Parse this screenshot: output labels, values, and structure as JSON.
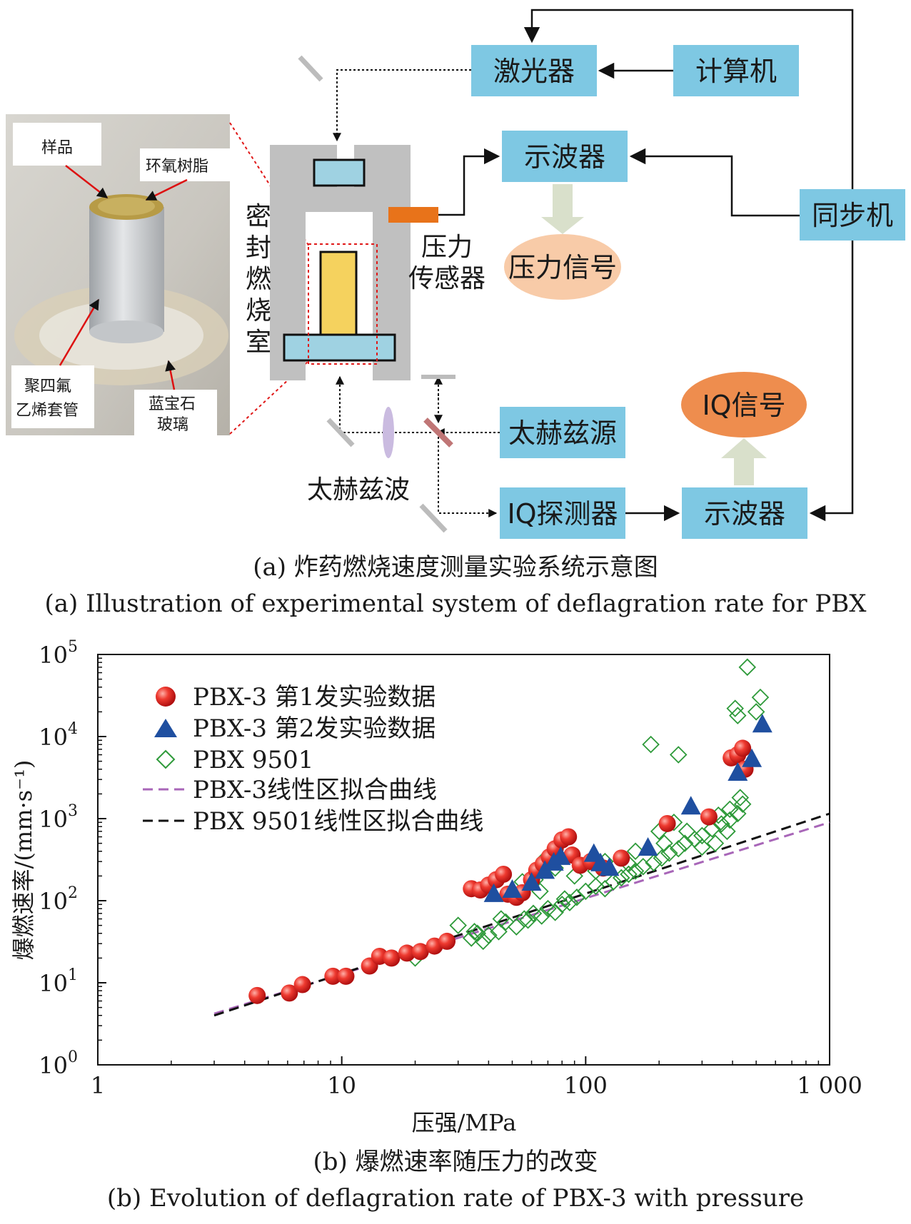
{
  "diagram": {
    "boxes": {
      "laser": "激光器",
      "computer": "计算机",
      "oscilloscope_top": "示波器",
      "sync": "同步机",
      "thz_source": "太赫兹源",
      "iq_detector": "IQ探测器",
      "oscilloscope_bottom": "示波器"
    },
    "ellipses": {
      "pressure_signal": "压力信号",
      "iq_signal": "IQ信号"
    },
    "labels": {
      "chamber": [
        "密",
        "封",
        "燃",
        "烧",
        "室"
      ],
      "pressure_sensor": [
        "压力",
        "传感器"
      ],
      "thz_wave": "太赫兹波"
    },
    "photo_labels": {
      "sample": "样品",
      "epoxy": "环氧树脂",
      "ptfe": [
        "聚四氟",
        "乙烯套管"
      ],
      "sapphire": [
        "蓝宝石",
        "玻璃"
      ]
    },
    "caption_zh": "(a) 炸药燃烧速度测量实验系统示意图",
    "caption_en": "(a) Illustration of experimental system of deflagration rate for PBX",
    "colors": {
      "box": "#7ec8e3",
      "sensor": "#e8731a",
      "sample": "#f5d25e",
      "pressure_ellipse": "#f8cba8",
      "iq_ellipse": "#ee8d4e"
    }
  },
  "chart_data": {
    "type": "scatter",
    "xlabel": "压强/MPa",
    "ylabel": "爆燃速率/(mm·s⁻¹)",
    "x_scale": "log",
    "y_scale": "log",
    "xlim": [
      1,
      1000
    ],
    "ylim": [
      1,
      100000
    ],
    "x_ticks": [
      1,
      10,
      100,
      1000
    ],
    "x_tick_labels": [
      "1",
      "10",
      "100",
      "1 000"
    ],
    "y_ticks": [
      1,
      10,
      100,
      1000,
      10000,
      100000
    ],
    "y_tick_labels": [
      [
        "10",
        "0"
      ],
      [
        "10",
        "1"
      ],
      [
        "10",
        "2"
      ],
      [
        "10",
        "3"
      ],
      [
        "10",
        "4"
      ],
      [
        "10",
        "5"
      ]
    ],
    "legend_position": "top-left",
    "series": [
      {
        "name": "PBX-3 第1发实验数据",
        "marker": "circle",
        "color": "#e02020",
        "points": [
          [
            4.5,
            7
          ],
          [
            6.1,
            7.5
          ],
          [
            6.9,
            9.5
          ],
          [
            9.2,
            12
          ],
          [
            10.4,
            12
          ],
          [
            13,
            16
          ],
          [
            14.3,
            21
          ],
          [
            16,
            20
          ],
          [
            18.5,
            23
          ],
          [
            21,
            24
          ],
          [
            24,
            28
          ],
          [
            27,
            32
          ],
          [
            34,
            140
          ],
          [
            37,
            135
          ],
          [
            40,
            155
          ],
          [
            43,
            180
          ],
          [
            46,
            210
          ],
          [
            48,
            120
          ],
          [
            52,
            110
          ],
          [
            55,
            125
          ],
          [
            60,
            180
          ],
          [
            63,
            235
          ],
          [
            67,
            280
          ],
          [
            71,
            340
          ],
          [
            75,
            430
          ],
          [
            80,
            550
          ],
          [
            85,
            600
          ],
          [
            88,
            360
          ],
          [
            95,
            270
          ],
          [
            105,
            300
          ],
          [
            118,
            250
          ],
          [
            140,
            330
          ],
          [
            216,
            870
          ],
          [
            320,
            1050
          ],
          [
            395,
            5500
          ],
          [
            420,
            6000
          ],
          [
            440,
            7200
          ],
          [
            450,
            4000
          ]
        ]
      },
      {
        "name": "PBX-3 第2发实验数据",
        "marker": "triangle",
        "color": "#1f4fa0",
        "points": [
          [
            42,
            120
          ],
          [
            50,
            135
          ],
          [
            60,
            165
          ],
          [
            68,
            230
          ],
          [
            74,
            290
          ],
          [
            79,
            340
          ],
          [
            108,
            370
          ],
          [
            115,
            285
          ],
          [
            125,
            250
          ],
          [
            180,
            440
          ],
          [
            270,
            1400
          ],
          [
            420,
            3600
          ],
          [
            480,
            5300
          ],
          [
            530,
            14000
          ]
        ]
      },
      {
        "name": "PBX 9501",
        "marker": "diamond",
        "color": "#2e9a3a",
        "points": [
          [
            20,
            20
          ],
          [
            30,
            50
          ],
          [
            34,
            35
          ],
          [
            36,
            40
          ],
          [
            40,
            38
          ],
          [
            44,
            42
          ],
          [
            47,
            55
          ],
          [
            52,
            48
          ],
          [
            56,
            60
          ],
          [
            61,
            70
          ],
          [
            66,
            65
          ],
          [
            70,
            80
          ],
          [
            75,
            72
          ],
          [
            80,
            90
          ],
          [
            86,
            95
          ],
          [
            92,
            110
          ],
          [
            100,
            130
          ],
          [
            110,
            150
          ],
          [
            120,
            140
          ],
          [
            130,
            170
          ],
          [
            140,
            190
          ],
          [
            150,
            210
          ],
          [
            160,
            230
          ],
          [
            172,
            260
          ],
          [
            190,
            290
          ],
          [
            205,
            330
          ],
          [
            220,
            380
          ],
          [
            240,
            430
          ],
          [
            255,
            500
          ],
          [
            280,
            560
          ],
          [
            300,
            620
          ],
          [
            330,
            750
          ],
          [
            360,
            860
          ],
          [
            390,
            960
          ],
          [
            420,
            1150
          ],
          [
            440,
            1500
          ],
          [
            430,
            1800
          ],
          [
            380,
            700
          ],
          [
            340,
            500
          ],
          [
            300,
            450
          ],
          [
            260,
            700
          ],
          [
            230,
            900
          ],
          [
            200,
            700
          ],
          [
            185,
            8000
          ],
          [
            240,
            6000
          ],
          [
            420,
            18000
          ],
          [
            410,
            22000
          ],
          [
            460,
            70000
          ],
          [
            520,
            30000
          ],
          [
            500,
            20000
          ],
          [
            75,
            250
          ],
          [
            68,
            320
          ],
          [
            62,
            180
          ],
          [
            120,
            300
          ],
          [
            150,
            280
          ],
          [
            55,
            170
          ],
          [
            45,
            60
          ],
          [
            38,
            32
          ],
          [
            65,
            130
          ],
          [
            90,
            200
          ],
          [
            110,
            230
          ],
          [
            160,
            400
          ],
          [
            210,
            500
          ],
          [
            350,
            1100
          ],
          [
            390,
            1300
          ],
          [
            35,
            42
          ],
          [
            58,
            58
          ],
          [
            82,
            105
          ]
        ]
      },
      {
        "name": "PBX-3线性区拟合曲线",
        "marker": "dashed-line",
        "color": "#a866b8",
        "x": [
          3,
          1000
        ],
        "y": [
          4.2,
          900
        ]
      },
      {
        "name": "PBX 9501线性区拟合曲线",
        "marker": "dashed-line",
        "color": "#111111",
        "x": [
          3,
          1000
        ],
        "y": [
          4.0,
          1150
        ]
      }
    ],
    "caption_zh": "(b) 爆燃速率随压力的改变",
    "caption_en": "(b) Evolution of deflagration rate of PBX-3 with pressure"
  }
}
